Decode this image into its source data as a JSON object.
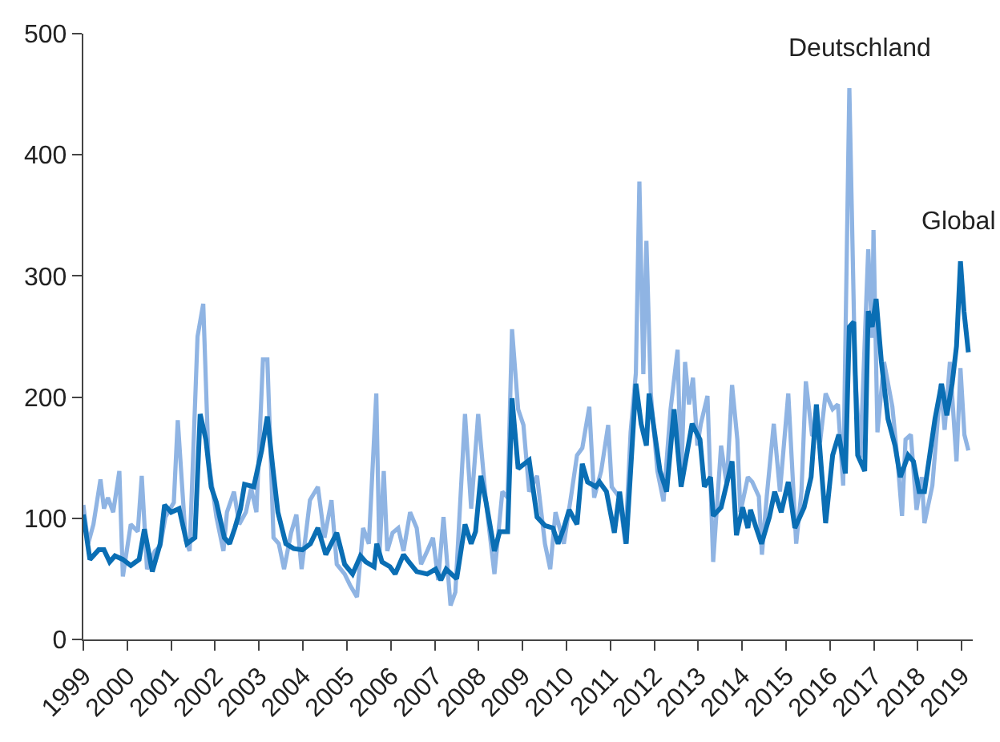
{
  "chart_data": {
    "type": "line",
    "xlim": [
      1999,
      2019.25
    ],
    "xticks": [
      1999,
      2000,
      2001,
      2002,
      2003,
      2004,
      2005,
      2006,
      2007,
      2008,
      2009,
      2010,
      2011,
      2012,
      2013,
      2014,
      2015,
      2016,
      2017,
      2018,
      2019
    ],
    "ylim": [
      0,
      500
    ],
    "yticks": [
      0,
      100,
      200,
      300,
      400,
      500
    ],
    "legend": false,
    "marker": "none",
    "line_style": "solid",
    "series": [
      {
        "name": "Deutschland",
        "color": "#8fb4e3",
        "x": [
          1999.0,
          1999.11,
          1999.23,
          1999.39,
          1999.47,
          1999.56,
          1999.68,
          1999.82,
          1999.9,
          2000.08,
          2000.24,
          2000.33,
          2000.45,
          2000.63,
          2000.75,
          2000.87,
          2001.06,
          2001.15,
          2001.33,
          2001.42,
          2001.6,
          2001.73,
          2001.85,
          2002.03,
          2002.19,
          2002.27,
          2002.43,
          2002.55,
          2002.7,
          2002.82,
          2002.94,
          2003.09,
          2003.19,
          2003.33,
          2003.45,
          2003.57,
          2003.73,
          2003.85,
          2003.97,
          2004.16,
          2004.34,
          2004.49,
          2004.65,
          2004.77,
          2004.95,
          2005.07,
          2005.23,
          2005.37,
          2005.5,
          2005.67,
          2005.74,
          2005.84,
          2005.92,
          2006.04,
          2006.17,
          2006.29,
          2006.44,
          2006.59,
          2006.69,
          2006.83,
          2006.96,
          2007.08,
          2007.2,
          2007.36,
          2007.47,
          2007.69,
          2007.83,
          2007.99,
          2008.17,
          2008.36,
          2008.54,
          2008.66,
          2008.76,
          2008.9,
          2009.02,
          2009.15,
          2009.33,
          2009.51,
          2009.63,
          2009.75,
          2009.94,
          2010.12,
          2010.24,
          2010.36,
          2010.52,
          2010.63,
          2010.79,
          2010.95,
          2011.03,
          2011.21,
          2011.34,
          2011.46,
          2011.58,
          2011.66,
          2011.75,
          2011.82,
          2011.92,
          2012.07,
          2012.21,
          2012.37,
          2012.53,
          2012.61,
          2012.7,
          2012.79,
          2012.88,
          2012.98,
          2013.06,
          2013.21,
          2013.34,
          2013.52,
          2013.65,
          2013.77,
          2013.89,
          2013.96,
          2014.13,
          2014.23,
          2014.38,
          2014.45,
          2014.56,
          2014.72,
          2014.86,
          2015.05,
          2015.23,
          2015.35,
          2015.45,
          2015.59,
          2015.78,
          2015.9,
          2016.06,
          2016.18,
          2016.3,
          2016.44,
          2016.57,
          2016.69,
          2016.87,
          2016.96,
          2016.99,
          2017.08,
          2017.23,
          2017.42,
          2017.54,
          2017.64,
          2017.72,
          2017.84,
          2017.97,
          2018.09,
          2018.15,
          2018.33,
          2018.52,
          2018.61,
          2018.73,
          2018.88,
          2018.97,
          2019.06,
          2019.15
        ],
        "values": [
          111,
          79,
          95,
          132,
          108,
          117,
          105,
          139,
          52,
          95,
          89,
          135,
          58,
          73,
          77,
          101,
          113,
          181,
          82,
          73,
          250,
          277,
          148,
          101,
          73,
          105,
          122,
          95,
          105,
          125,
          105,
          231,
          231,
          84,
          79,
          58,
          88,
          103,
          58,
          115,
          126,
          84,
          115,
          62,
          54,
          45,
          35,
          92,
          79,
          203,
          70,
          139,
          73,
          88,
          92,
          73,
          105,
          92,
          62,
          73,
          84,
          49,
          101,
          28,
          39,
          186,
          108,
          186,
          113,
          54,
          122,
          117,
          256,
          190,
          177,
          122,
          135,
          79,
          58,
          105,
          79,
          122,
          152,
          158,
          192,
          117,
          139,
          177,
          126,
          117,
          79,
          171,
          220,
          378,
          219,
          329,
          203,
          139,
          114,
          190,
          239,
          130,
          229,
          194,
          216,
          160,
          178,
          201,
          64,
          160,
          127,
          210,
          165,
          105,
          134,
          130,
          118,
          70,
          118,
          178,
          122,
          203,
          79,
          122,
          213,
          169,
          165,
          203,
          190,
          194,
          127,
          455,
          222,
          150,
          322,
          249,
          338,
          171,
          229,
          192,
          147,
          102,
          165,
          169,
          107,
          134,
          96,
          127,
          211,
          173,
          229,
          147,
          224,
          169,
          156
        ]
      },
      {
        "name": "Global",
        "color": "#0a6eb4",
        "x": [
          1999.0,
          1999.15,
          1999.35,
          1999.47,
          1999.6,
          1999.72,
          1999.9,
          2000.08,
          2000.27,
          2000.39,
          2000.57,
          2000.75,
          2000.85,
          2001.0,
          2001.18,
          2001.36,
          2001.54,
          2001.66,
          2001.79,
          2001.91,
          2002.03,
          2002.21,
          2002.33,
          2002.45,
          2002.58,
          2002.67,
          2002.88,
          2003.06,
          2003.19,
          2003.31,
          2003.43,
          2003.61,
          2003.79,
          2003.99,
          2004.17,
          2004.34,
          2004.52,
          2004.77,
          2004.95,
          2005.13,
          2005.31,
          2005.43,
          2005.62,
          2005.68,
          2005.8,
          2005.98,
          2006.1,
          2006.29,
          2006.41,
          2006.59,
          2006.83,
          2007.02,
          2007.14,
          2007.26,
          2007.5,
          2007.69,
          2007.83,
          2007.93,
          2008.05,
          2008.17,
          2008.36,
          2008.48,
          2008.66,
          2008.76,
          2008.9,
          2009.15,
          2009.33,
          2009.51,
          2009.69,
          2009.81,
          2009.94,
          2010.06,
          2010.24,
          2010.36,
          2010.48,
          2010.67,
          2010.75,
          2010.91,
          2011.09,
          2011.21,
          2011.36,
          2011.58,
          2011.7,
          2011.82,
          2011.88,
          2012.13,
          2012.28,
          2012.45,
          2012.61,
          2012.86,
          2013.04,
          2013.14,
          2013.28,
          2013.34,
          2013.52,
          2013.77,
          2013.87,
          2014.01,
          2014.13,
          2014.19,
          2014.32,
          2014.44,
          2014.62,
          2014.74,
          2014.89,
          2015.05,
          2015.2,
          2015.41,
          2015.57,
          2015.69,
          2015.9,
          2016.06,
          2016.2,
          2016.35,
          2016.44,
          2016.54,
          2016.63,
          2016.79,
          2016.87,
          2016.96,
          2017.05,
          2017.17,
          2017.32,
          2017.48,
          2017.6,
          2017.78,
          2017.9,
          2018.03,
          2018.15,
          2018.27,
          2018.39,
          2018.54,
          2018.66,
          2018.78,
          2018.88,
          2018.97,
          2019.05,
          2019.15
        ],
        "values": [
          103,
          66,
          74,
          74,
          64,
          69,
          66,
          61,
          66,
          91,
          56,
          79,
          111,
          105,
          108,
          79,
          84,
          186,
          165,
          126,
          113,
          84,
          79,
          92,
          108,
          128,
          126,
          156,
          184,
          143,
          105,
          79,
          75,
          74,
          79,
          92,
          70,
          88,
          62,
          54,
          69,
          64,
          60,
          79,
          64,
          60,
          54,
          70,
          64,
          56,
          54,
          58,
          49,
          58,
          50,
          95,
          79,
          89,
          135,
          113,
          73,
          89,
          89,
          199,
          141,
          148,
          101,
          94,
          92,
          79,
          92,
          107,
          95,
          145,
          130,
          126,
          130,
          122,
          88,
          122,
          79,
          211,
          178,
          160,
          203,
          139,
          122,
          190,
          126,
          178,
          165,
          126,
          134,
          102,
          109,
          147,
          86,
          109,
          92,
          107,
          92,
          79,
          101,
          122,
          105,
          130,
          92,
          109,
          134,
          194,
          96,
          152,
          169,
          137,
          258,
          262,
          152,
          139,
          271,
          258,
          281,
          229,
          182,
          160,
          134,
          152,
          147,
          122,
          122,
          152,
          182,
          211,
          185,
          211,
          242,
          312,
          271,
          237
        ]
      }
    ]
  }
}
